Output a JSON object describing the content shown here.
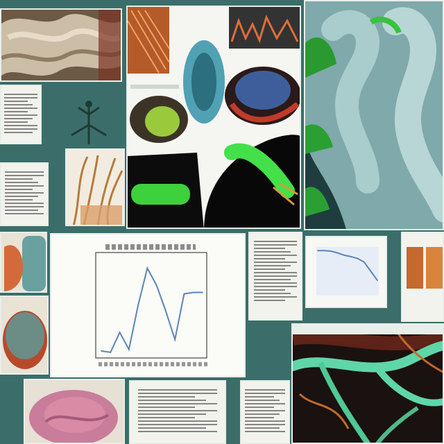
{
  "chart_data": {
    "type": "line",
    "title": "",
    "xlabel": "",
    "ylabel": "",
    "x": [
      0,
      1,
      2,
      3,
      4,
      5,
      6,
      7,
      8,
      9,
      10,
      11
    ],
    "values": [
      0.3,
      0.2,
      1.6,
      0.4,
      3.5,
      6.1,
      4.9,
      3.1,
      1.1,
      4.3,
      4.4,
      4.4
    ],
    "ylim": [
      0,
      7
    ],
    "grid": false,
    "line_color": "#5b84b8"
  },
  "mini_chart": {
    "type": "line",
    "values": [
      0.95,
      0.95,
      0.94,
      0.9,
      0.85,
      0.82,
      0.78,
      0.7,
      0.5,
      0.3
    ],
    "ylim": [
      0,
      1
    ],
    "line_color": "#5b84b8"
  },
  "colors": {
    "background": "#3b6e6a",
    "accent_green": "#38d94a",
    "tissue_teal": "#9fc7c6",
    "tissue_pink": "#d88aa5"
  }
}
